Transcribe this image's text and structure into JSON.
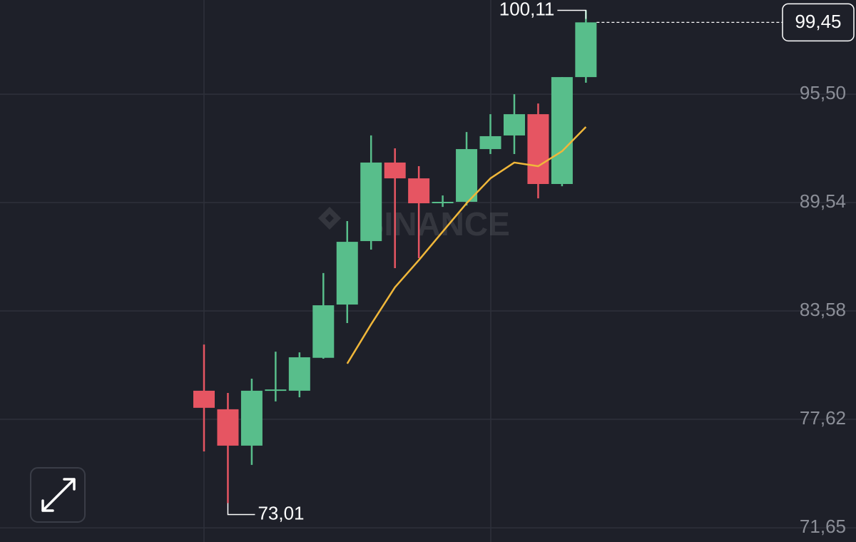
{
  "chart_data": {
    "type": "candlestick",
    "open": [
      79.19,
      78.17,
      76.17,
      79.19,
      79.19,
      81.0,
      83.93,
      87.42,
      91.74,
      90.87,
      89.54,
      89.58,
      92.48,
      93.23,
      94.4,
      90.56,
      96.44
    ],
    "high": [
      81.73,
      79.07,
      79.85,
      81.34,
      81.3,
      85.66,
      88.52,
      93.23,
      92.52,
      91.54,
      89.93,
      93.42,
      94.4,
      95.5,
      94.99,
      96.44,
      100.11
    ],
    "low": [
      75.85,
      73.01,
      75.11,
      78.6,
      78.83,
      80.95,
      82.91,
      86.95,
      85.93,
      86.48,
      89.3,
      89.38,
      92.21,
      92.21,
      89.77,
      90.44,
      96.13
    ],
    "close": [
      78.25,
      76.17,
      79.19,
      79.26,
      81.03,
      83.89,
      87.38,
      91.74,
      90.87,
      89.5,
      89.58,
      92.48,
      93.19,
      94.4,
      90.56,
      96.44,
      99.45
    ],
    "up_color": "#58be8b",
    "down_color": "#e65562",
    "moving_average": {
      "color": "#f0b73a",
      "values": [
        null,
        null,
        null,
        null,
        null,
        null,
        80.68,
        82.84,
        84.88,
        86.37,
        87.94,
        89.5,
        90.87,
        91.74,
        91.54,
        92.36,
        93.7
      ]
    },
    "ylim": [
      70.87,
      100.68
    ],
    "yticks": [
      {
        "value": 71.65,
        "label": "71,65"
      },
      {
        "value": 77.62,
        "label": "77,62"
      },
      {
        "value": 83.58,
        "label": "83,58"
      },
      {
        "value": 89.54,
        "label": "89,54"
      },
      {
        "value": 95.5,
        "label": "95,50"
      }
    ],
    "grid": true,
    "high_marker": {
      "value": 100.11,
      "label": "100,11"
    },
    "low_marker": {
      "value": 73.01,
      "label": "73,01"
    },
    "last_price": {
      "value": 99.45,
      "label": "99,45"
    },
    "watermark": "BINANCE"
  }
}
